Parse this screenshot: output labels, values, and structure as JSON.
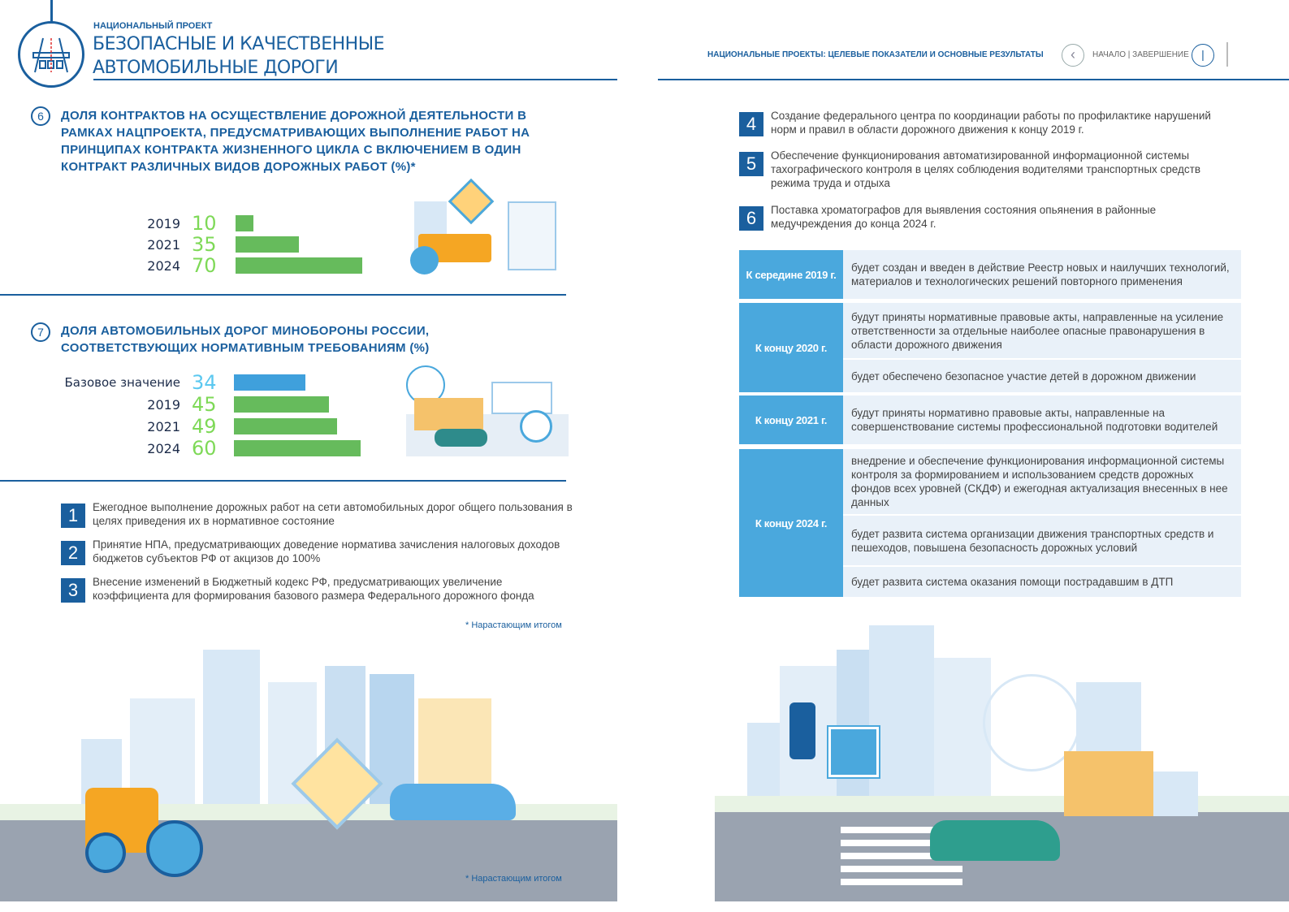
{
  "header": {
    "project_label": "НАЦИОНАЛЬНЫЙ ПРОЕКТ",
    "title_line1": "БЕЗОПАСНЫЕ И КАЧЕСТВЕННЫЕ",
    "title_line2": "АВТОМОБИЛЬНЫЕ ДОРОГИ",
    "right_title": "НАЦИОНАЛЬНЫЕ ПРОЕКТЫ: ЦЕЛЕВЫЕ ПОКАЗАТЕЛИ И ОСНОВНЫЕ РЕЗУЛЬТАТЫ",
    "nav_label": "НАЧАЛО | ЗАВЕРШЕНИЕ"
  },
  "colors": {
    "brand": "#1a5f9e",
    "bar_green": "#66bb5c",
    "bar_blue": "#3fa0dc",
    "value_green": "#7ed957",
    "value_blue": "#5bc8f0",
    "timeline": "#4aa8dd"
  },
  "chart_data": [
    {
      "type": "bar",
      "number": "6",
      "title": "ДОЛЯ КОНТРАКТОВ НА ОСУЩЕСТВЛЕНИЕ ДОРОЖНОЙ ДЕЯТЕЛЬНОСТИ В РАМКАХ НАЦПРОЕКТА, ПРЕДУСМАТРИВАЮЩИХ ВЫПОЛНЕНИЕ РАБОТ НА ПРИНЦИПАХ КОНТРАКТА ЖИЗНЕННОГО ЦИКЛА С ВКЛЮЧЕНИЕМ В ОДИН КОНТРАКТ РАЗЛИЧНЫХ ВИДОВ ДОРОЖНЫХ РАБОТ (%)*",
      "categories": [
        "2019",
        "2021",
        "2024"
      ],
      "values": [
        10,
        35,
        70
      ],
      "value_labels": [
        "10",
        "35",
        "70"
      ],
      "orientation": "horizontal"
    },
    {
      "type": "bar",
      "number": "7",
      "title": "ДОЛЯ АВТОМОБИЛЬНЫХ ДОРОГ МИНОБОРОНЫ РОССИИ, СООТВЕТСТВУЮЩИХ НОРМАТИВНЫМ ТРЕБОВАНИЯМ (%)",
      "categories": [
        "Базовое значение",
        "2019",
        "2021",
        "2024"
      ],
      "values": [
        34,
        45,
        49,
        60
      ],
      "value_labels": [
        "34",
        "45",
        "49",
        "60"
      ],
      "orientation": "horizontal"
    }
  ],
  "left_items": [
    {
      "num": "1",
      "text": "Ежегодное выполнение дорожных работ на сети автомобильных дорог общего пользования в целях приведения их в нормативное состояние"
    },
    {
      "num": "2",
      "text": "Принятие НПА, предусматривающих доведение норматива зачисления налоговых доходов бюджетов субъектов РФ от акцизов до 100%"
    },
    {
      "num": "3",
      "text": "Внесение изменений в Бюджетный кодекс РФ, предусматривающих увеличение коэффициента для формирования базового размера Федерального дорожного фонда"
    }
  ],
  "right_items": [
    {
      "num": "4",
      "text": "Создание федерального центра по координации работы по профилактике нарушений норм и правил в области дорожного движения к концу 2019 г."
    },
    {
      "num": "5",
      "text": "Обеспечение функционирования автоматизированной информационной системы тахографического контроля в целях соблюдения водителями транспортных средств режима труда и отдыха"
    },
    {
      "num": "6",
      "text": "Поставка хроматографов для выявления состояния опьянения в районные медучреждения до конца 2024 г."
    }
  ],
  "timeline": [
    {
      "period": "К середине 2019 г.",
      "items": [
        "будет создан и введен в действие Реестр новых и наилучших технологий, материалов и технологических решений повторного применения"
      ]
    },
    {
      "period": "К концу 2020 г.",
      "items": [
        "будут приняты нормативные правовые акты, направленные на усиление ответственности за отдельные наиболее опасные правонарушения в области дорожного движения",
        "будет обеспечено безопасное участие детей в дорожном движении"
      ]
    },
    {
      "period": "К концу 2021 г.",
      "items": [
        "будут приняты нормативно правовые акты, направленные на совершенствование системы профессиональной подготовки водителей"
      ]
    },
    {
      "period": "К концу 2024 г.",
      "items": [
        "внедрение и обеспечение функционирования информационной системы контроля за формированием и использованием средств дорожных фондов всех уровней (СКДФ) и ежегодная актуализация внесенных в нее данных",
        "будет развита система организации движения транспортных средств и пешеходов, повышена безопасность дорожных условий",
        "будет развита система оказания помощи пострадавшим в ДТП"
      ]
    }
  ],
  "footnote": "* Нарастающим итогом",
  "footnote_bottom": "* Нарастающим итогом"
}
